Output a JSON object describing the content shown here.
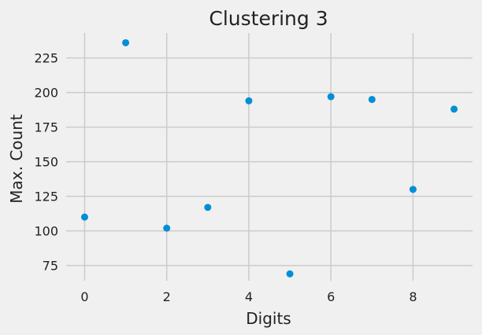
{
  "chart_data": {
    "type": "scatter",
    "title": "Clustering 3",
    "xlabel": "Digits",
    "ylabel": "Max. Count",
    "xlim": [
      -0.45,
      9.45
    ],
    "ylim": [
      64,
      243
    ],
    "xticks": [
      0,
      2,
      4,
      6,
      8
    ],
    "yticks": [
      75,
      100,
      125,
      150,
      175,
      200,
      225
    ],
    "grid": true,
    "legend": "none",
    "series": [
      {
        "x": [
          0,
          1,
          2,
          3,
          4,
          5,
          6,
          7,
          8,
          9
        ],
        "y": [
          110,
          236,
          102,
          117,
          194,
          69,
          197,
          195,
          130,
          188
        ],
        "color": "#008fd5"
      }
    ]
  },
  "colors": {
    "background": "#f0f0f0",
    "grid": "#cbcbcb",
    "text": "#222222"
  }
}
